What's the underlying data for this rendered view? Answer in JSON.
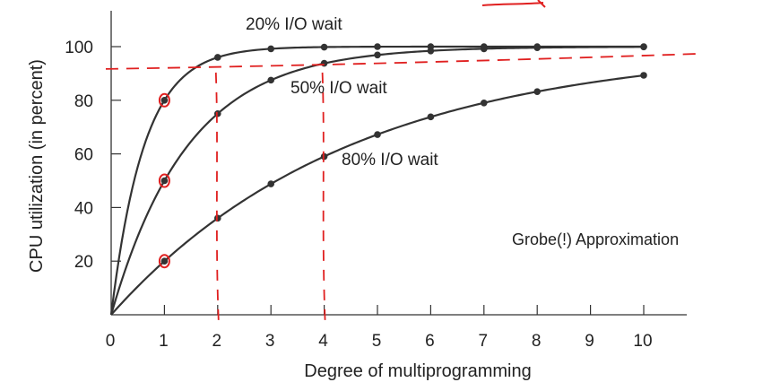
{
  "chart_data": {
    "type": "line",
    "title": "",
    "xlabel": "Degree of multiprogramming",
    "ylabel": "CPU utilization (in percent)",
    "xlim": [
      0,
      10
    ],
    "ylim": [
      0,
      100
    ],
    "x_ticks": [
      "0",
      "1",
      "2",
      "3",
      "4",
      "5",
      "6",
      "7",
      "8",
      "9",
      "10"
    ],
    "y_ticks": [
      "20",
      "40",
      "60",
      "80",
      "100"
    ],
    "series": [
      {
        "name": "20% I/O wait",
        "x": [
          1,
          2,
          3,
          4,
          5,
          6,
          7,
          8,
          10
        ],
        "values": [
          80,
          96,
          99.2,
          99.8,
          100,
          100,
          100,
          100,
          100
        ]
      },
      {
        "name": "50% I/O wait",
        "x": [
          1,
          2,
          3,
          4,
          5,
          6,
          7,
          8,
          10
        ],
        "values": [
          50,
          75,
          87.5,
          93.8,
          96.9,
          98.4,
          99.2,
          99.6,
          99.9
        ]
      },
      {
        "name": "80% I/O wait",
        "x": [
          1,
          2,
          3,
          4,
          5,
          6,
          7,
          8,
          10
        ],
        "values": [
          20,
          36,
          48.8,
          59,
          67.2,
          73.8,
          79,
          83.2,
          89.3
        ]
      }
    ],
    "annotations": {
      "note": "Grobe(!) Approximation"
    },
    "handwritten": {
      "color": "#e02020",
      "reference_y": 91,
      "vertical_x": [
        2,
        4
      ],
      "circled_points": [
        {
          "x": 1,
          "y": 80
        },
        {
          "x": 1,
          "y": 50
        },
        {
          "x": 1,
          "y": 20
        }
      ]
    },
    "colors": {
      "line": "#333333",
      "axis": "#333333",
      "annotation": "#e02020"
    },
    "grid": false
  }
}
